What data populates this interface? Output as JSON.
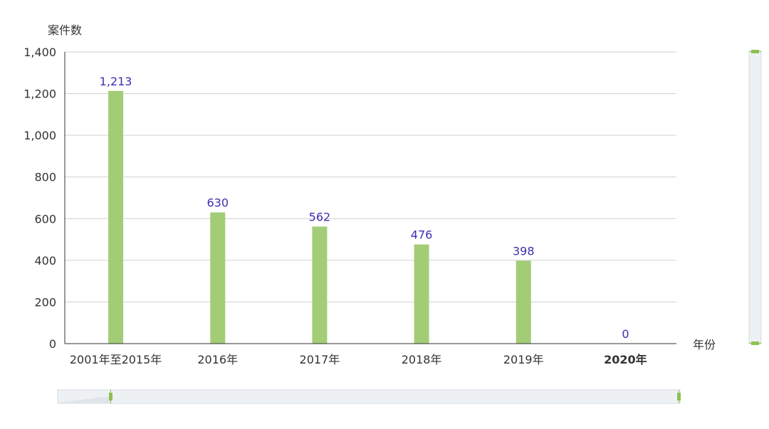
{
  "chart_data": {
    "type": "bar",
    "categories": [
      "2001年至2015年",
      "2016年",
      "2017年",
      "2018年",
      "2019年",
      "2020年"
    ],
    "values": [
      1213,
      630,
      562,
      476,
      398,
      0
    ],
    "value_labels": [
      "1,213",
      "630",
      "562",
      "476",
      "398",
      "0"
    ],
    "xlabel": "年份",
    "ylabel": "案件数",
    "ylim": [
      0,
      1400
    ],
    "yticks": [
      0,
      200,
      400,
      600,
      800,
      1000,
      1200,
      1400
    ],
    "ytick_labels": [
      "0",
      "200",
      "400",
      "600",
      "800",
      "1,000",
      "1,200",
      "1,400"
    ],
    "grid": true,
    "legend": "none",
    "colors": {
      "bar": "#a3cc77",
      "label": "#3b2fb0",
      "grid": "#d0d0d0",
      "axis": "#333333",
      "zoom_handle": "#8cc152",
      "zoom_bg": "#eef1f4"
    },
    "zoom_x": {
      "start": 0,
      "end": 1
    },
    "zoom_y": {
      "start": 0,
      "end": 1
    }
  }
}
